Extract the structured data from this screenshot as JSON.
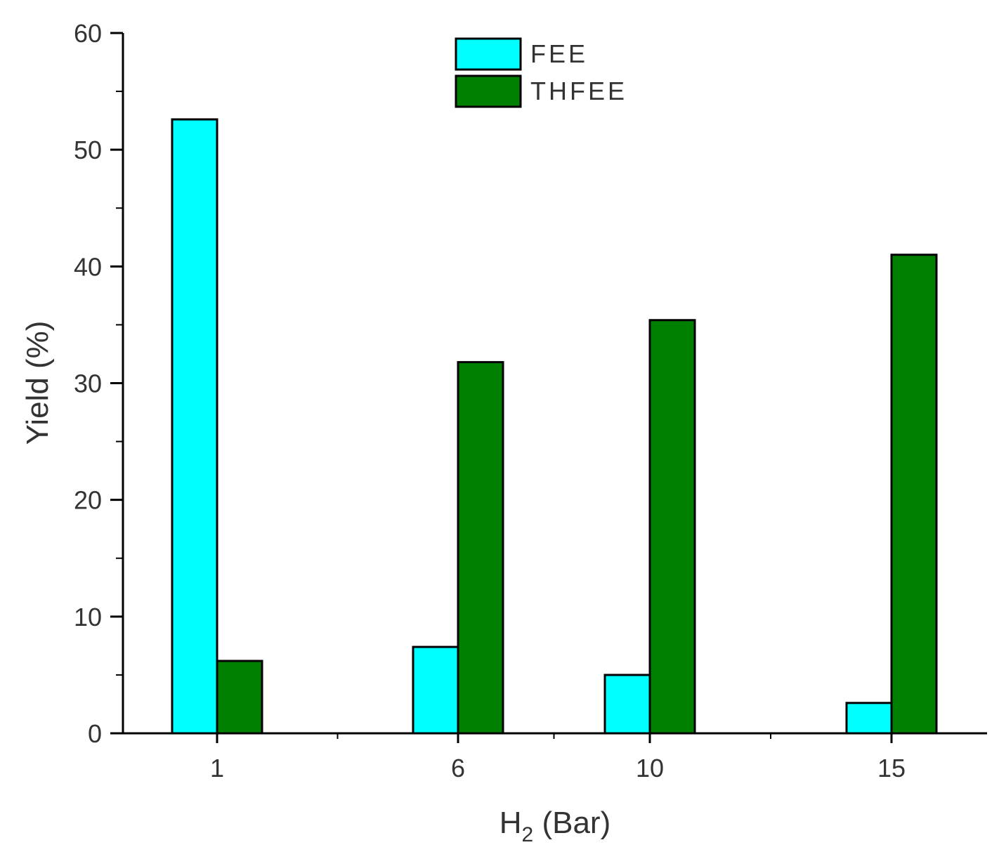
{
  "chart_data": {
    "type": "bar",
    "categories": [
      "1",
      "6",
      "10",
      "15"
    ],
    "series": [
      {
        "name": "FEE",
        "color": "#00ffff",
        "values": [
          52.6,
          7.4,
          5.0,
          2.6
        ]
      },
      {
        "name": "THFEE",
        "color": "#008000",
        "values": [
          6.2,
          31.8,
          35.4,
          41.0
        ]
      }
    ],
    "xlabel": {
      "main": "H",
      "sub": "2",
      "rest": " (Bar)"
    },
    "ylabel": "Yield (%)",
    "ylim": [
      0,
      60
    ],
    "yticks": [
      "0",
      "10",
      "20",
      "30",
      "40",
      "50",
      "60"
    ],
    "grid": false,
    "legend_position": "top-center"
  }
}
